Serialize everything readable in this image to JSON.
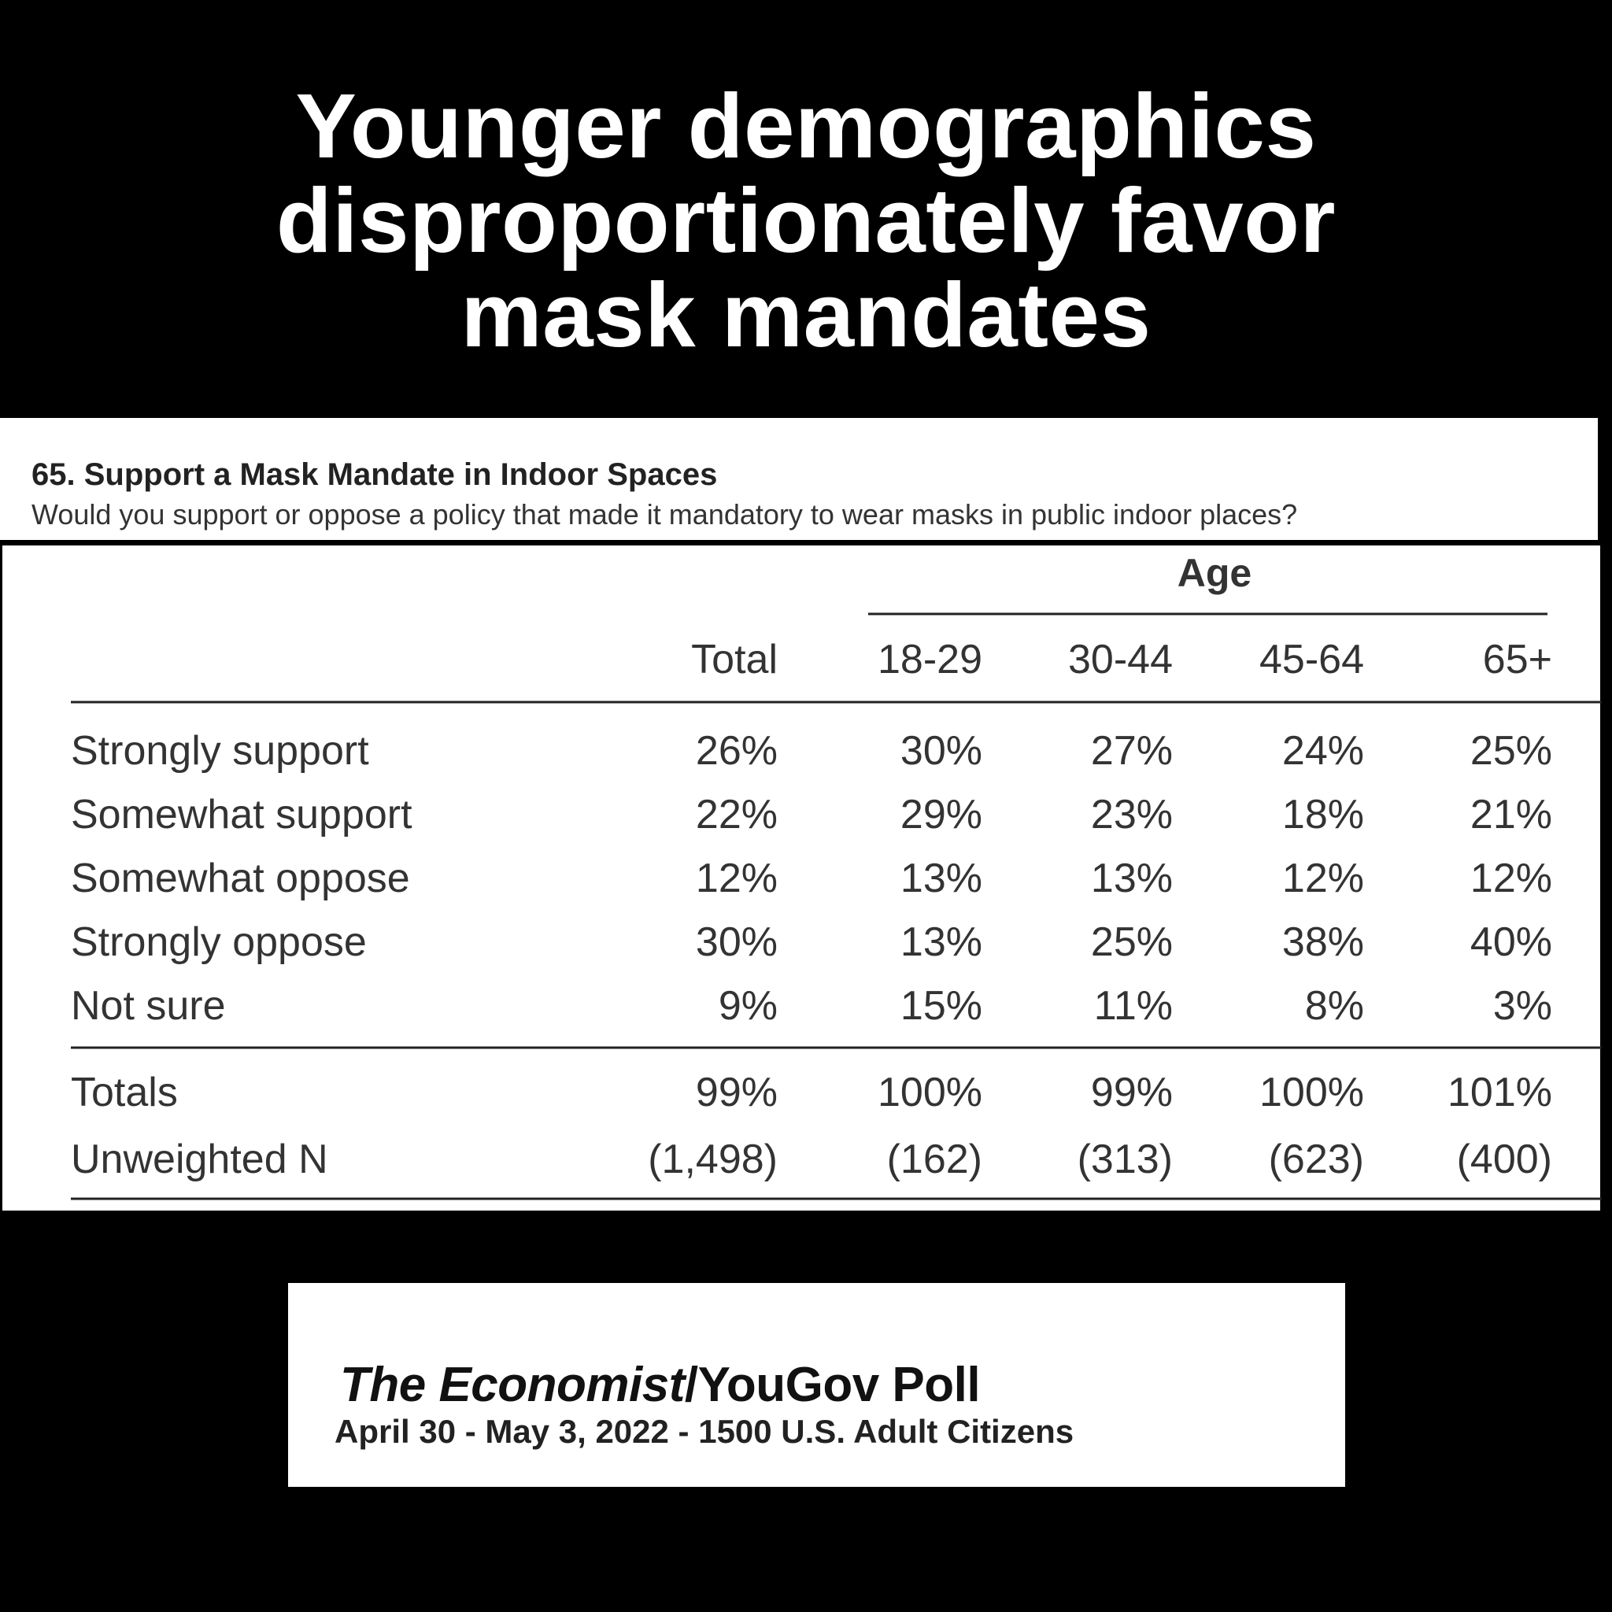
{
  "headline": {
    "lines": [
      "Younger demographics",
      "disproportionately favor",
      "mask mandates"
    ]
  },
  "question": {
    "title": "65. Support a Mask Mandate in Indoor Spaces",
    "text": "Would you support or oppose a policy that made it mandatory to wear masks in public indoor places?"
  },
  "chart_data": {
    "type": "table",
    "group_header": "Age",
    "columns": [
      "Total",
      "18-29",
      "30-44",
      "45-64",
      "65+"
    ],
    "rows": [
      {
        "label": "Strongly support",
        "cells": [
          "26%",
          "30%",
          "27%",
          "24%",
          "25%"
        ]
      },
      {
        "label": "Somewhat support",
        "cells": [
          "22%",
          "29%",
          "23%",
          "18%",
          "21%"
        ]
      },
      {
        "label": "Somewhat oppose",
        "cells": [
          "12%",
          "13%",
          "13%",
          "12%",
          "12%"
        ]
      },
      {
        "label": "Strongly oppose",
        "cells": [
          "30%",
          "13%",
          "25%",
          "38%",
          "40%"
        ]
      },
      {
        "label": "Not sure",
        "cells": [
          "9%",
          "15%",
          "11%",
          "8%",
          "3%"
        ]
      }
    ],
    "footer_rows": [
      {
        "label": "Totals",
        "cells": [
          "99%",
          "100%",
          "99%",
          "100%",
          "101%"
        ]
      },
      {
        "label": "Unweighted N",
        "cells": [
          "(1,498)",
          "(162)",
          "(313)",
          "(623)",
          "(400)"
        ]
      }
    ]
  },
  "source": {
    "title_italic": "The Economist",
    "title_rest": "/YouGov Poll",
    "subtitle": "April 30 - May 3, 2022 - 1500 U.S. Adult Citizens"
  }
}
